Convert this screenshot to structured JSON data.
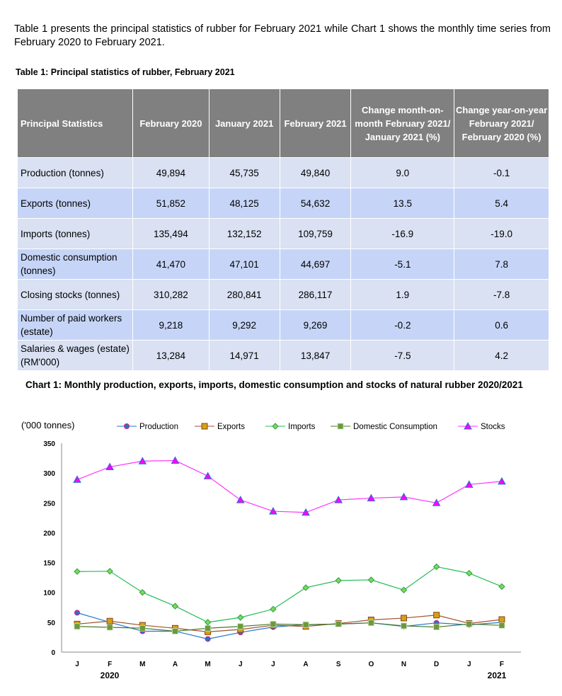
{
  "intro": "Table 1 presents the principal statistics of rubber for February 2021 while Chart 1 shows the monthly time series from February 2020 to February 2021.",
  "table": {
    "title": "Table 1: Principal statistics of rubber, February 2021",
    "headers": [
      "Principal Statistics",
      "February 2020",
      "January 2021",
      "February 2021",
      "Change month-on-month February 2021/ January 2021 (%)",
      "Change year-on-year February 2021/ February 2020 (%)"
    ],
    "rows": [
      [
        "Production (tonnes)",
        "49,894",
        "45,735",
        "49,840",
        "9.0",
        "-0.1"
      ],
      [
        "Exports (tonnes)",
        "51,852",
        "48,125",
        "54,632",
        "13.5",
        "5.4"
      ],
      [
        "Imports (tonnes)",
        "135,494",
        "132,152",
        "109,759",
        "-16.9",
        "-19.0"
      ],
      [
        "Domestic consumption (tonnes)",
        "41,470",
        "47,101",
        "44,697",
        "-5.1",
        "7.8"
      ],
      [
        "Closing stocks (tonnes)",
        "310,282",
        "280,841",
        "286,117",
        "1.9",
        "-7.8"
      ],
      [
        "Number of paid workers (estate)",
        "9,218",
        "9,292",
        "9,269",
        "-0.2",
        "0.6"
      ],
      [
        "Salaries & wages (estate) (RM'000)",
        "13,284",
        "14,971",
        "13,847",
        "-7.5",
        "4.2"
      ]
    ]
  },
  "chart_data": {
    "type": "line",
    "title": "Chart 1: Monthly production, exports, imports, domestic consumption and stocks of natural rubber 2020/2021",
    "ylabel": "('000 tonnes)",
    "ylim": [
      0,
      350
    ],
    "yticks": [
      0,
      50,
      100,
      150,
      200,
      250,
      300,
      350
    ],
    "categories": [
      "J",
      "F",
      "M",
      "A",
      "M",
      "J",
      "J",
      "A",
      "S",
      "O",
      "N",
      "D",
      "J",
      "F"
    ],
    "year_labels": [
      "2020",
      "2021"
    ],
    "legend_position": "top",
    "series": [
      {
        "name": "Production",
        "color": "#1f77d0",
        "values": [
          66,
          49.9,
          35,
          35,
          22,
          33,
          42,
          46,
          47,
          49,
          43,
          49,
          45.7,
          49.8
        ]
      },
      {
        "name": "Exports",
        "color": "#a0522d",
        "values": [
          47,
          51.9,
          45,
          40,
          34,
          38,
          45,
          43,
          48,
          54,
          57,
          62,
          48.1,
          54.6
        ]
      },
      {
        "name": "Imports",
        "color": "#22bb55",
        "values": [
          135,
          135.5,
          100,
          77,
          50,
          58,
          72,
          108,
          120,
          121,
          104,
          143,
          132.2,
          109.8
        ]
      },
      {
        "name": "Domestic Consumption",
        "color": "#4a7a2a",
        "values": [
          43,
          41.5,
          40,
          35,
          40,
          43,
          47,
          46,
          47,
          49,
          44,
          42,
          47.1,
          44.7
        ]
      },
      {
        "name": "Stocks",
        "color": "#ff33ff",
        "values": [
          289,
          310.3,
          320,
          321,
          295,
          255,
          236,
          234,
          255,
          258,
          260,
          250,
          280.8,
          286.1
        ]
      }
    ]
  }
}
